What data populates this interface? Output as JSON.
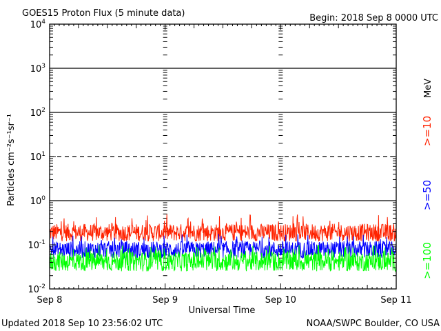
{
  "chart_data": {
    "type": "line",
    "title": "GOES15 Proton Flux (5 minute data)",
    "begin_label": "Begin: 2018 Sep 8 0000 UTC",
    "ylabel": "Particles cm⁻²s⁻¹sr⁻¹",
    "xlabel": "Universal Time",
    "footer_left": "Updated 2018 Sep 10 23:56:02 UTC",
    "footer_right": "NOAA/SWPC Boulder, CO USA",
    "y_scale": "log",
    "ylim": [
      0.01,
      10000
    ],
    "xlim_days": [
      0,
      3
    ],
    "x_ticks": [
      {
        "day": 0,
        "label": "Sep 8"
      },
      {
        "day": 1,
        "label": "Sep 9"
      },
      {
        "day": 2,
        "label": "Sep 10"
      },
      {
        "day": 3,
        "label": "Sep 11"
      }
    ],
    "y_ticks": [
      {
        "exp": -2,
        "base": "10",
        "sup": "-2"
      },
      {
        "exp": -1,
        "base": "10",
        "sup": "-1"
      },
      {
        "exp": 0,
        "base": "10",
        "sup": "0"
      },
      {
        "exp": 1,
        "base": "10",
        "sup": "1"
      },
      {
        "exp": 2,
        "base": "10",
        "sup": "2"
      },
      {
        "exp": 3,
        "base": "10",
        "sup": "3"
      },
      {
        "exp": 4,
        "base": "10",
        "sup": "4"
      }
    ],
    "threshold_lines": [
      {
        "value": 1000,
        "style": "solid"
      },
      {
        "value": 100,
        "style": "solid"
      },
      {
        "value": 10,
        "style": "dashed"
      },
      {
        "value": 1,
        "style": "solid"
      }
    ],
    "unit_label": "MeV",
    "series": [
      {
        "name": ">=10",
        "color": "#ff2200",
        "typical_range": [
          0.12,
          0.3
        ],
        "peak_max": 0.5
      },
      {
        "name": ">=50",
        "color": "#0000ff",
        "typical_range": [
          0.05,
          0.12
        ],
        "peak_max": 0.18
      },
      {
        "name": ">=100",
        "color": "#00ff00",
        "typical_range": [
          0.025,
          0.07
        ],
        "peak_max": 0.1
      }
    ],
    "grid": false
  }
}
